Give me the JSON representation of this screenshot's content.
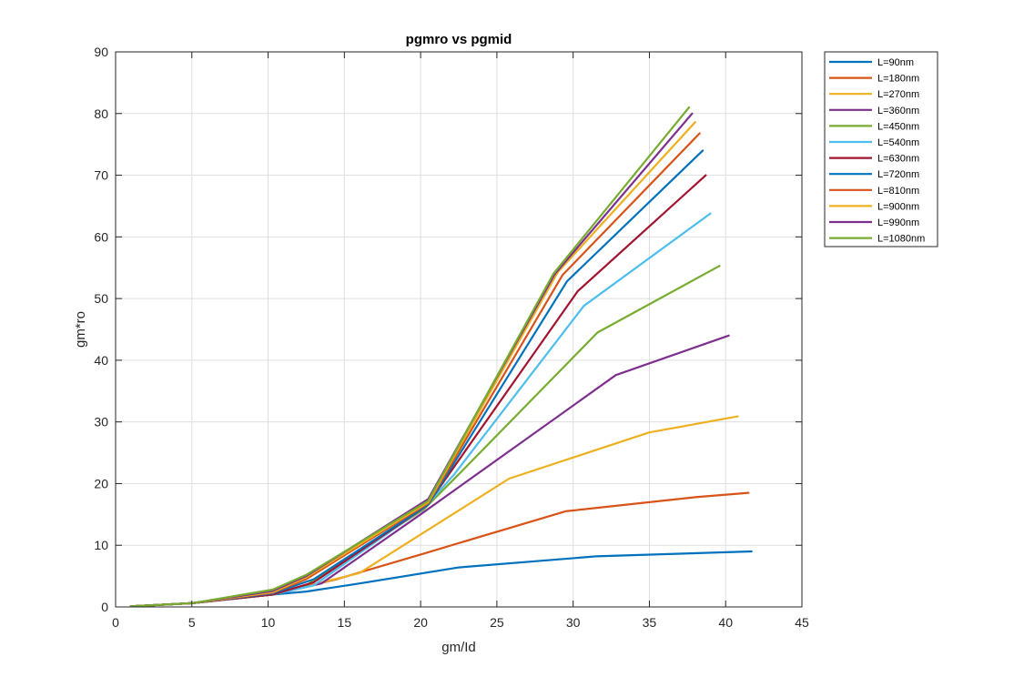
{
  "chart_data": {
    "type": "line",
    "title": "pgmro vs pgmid",
    "xlabel": "gm/Id",
    "ylabel": "gm*ro",
    "xlim": [
      0,
      45
    ],
    "ylim": [
      0,
      90
    ],
    "xticks": [
      0,
      5,
      10,
      15,
      20,
      25,
      30,
      35,
      40,
      45
    ],
    "yticks": [
      0,
      10,
      20,
      30,
      40,
      50,
      60,
      70,
      80,
      90
    ],
    "grid": true,
    "legend_position": "outside-top-right",
    "series": [
      {
        "name": "L=90nm",
        "color": "#0072BD",
        "points": [
          [
            1,
            0.1
          ],
          [
            5,
            0.6
          ],
          [
            10.3,
            2
          ],
          [
            12.5,
            2.5
          ],
          [
            16,
            3.8
          ],
          [
            22.5,
            6.4
          ],
          [
            31.5,
            8.2
          ],
          [
            41.7,
            9
          ]
        ]
      },
      {
        "name": "L=180nm",
        "color": "#D95319",
        "points": [
          [
            1,
            0.1
          ],
          [
            5,
            0.6
          ],
          [
            10.3,
            2
          ],
          [
            14.5,
            4.5
          ],
          [
            20,
            8.5
          ],
          [
            29.5,
            15.5
          ],
          [
            38,
            17.8
          ],
          [
            41.5,
            18.5
          ]
        ]
      },
      {
        "name": "L=270nm",
        "color": "#EDB120",
        "points": [
          [
            1,
            0.1
          ],
          [
            5,
            0.6
          ],
          [
            10.3,
            2
          ],
          [
            16,
            5.5
          ],
          [
            25.8,
            20.8
          ],
          [
            35,
            28.3
          ],
          [
            40.8,
            30.9
          ]
        ]
      },
      {
        "name": "L=360nm",
        "color": "#7E2F8E",
        "points": [
          [
            1,
            0.1
          ],
          [
            5,
            0.6
          ],
          [
            10.3,
            2
          ],
          [
            13.5,
            3.8
          ],
          [
            20,
            15
          ],
          [
            32.8,
            37.6
          ],
          [
            40.2,
            44
          ]
        ]
      },
      {
        "name": "L=450nm",
        "color": "#77AC30",
        "points": [
          [
            1,
            0.1
          ],
          [
            5,
            0.6
          ],
          [
            10.3,
            2
          ],
          [
            12.5,
            3.5
          ],
          [
            20.2,
            15.8
          ],
          [
            22.5,
            21.5
          ],
          [
            31.6,
            44.5
          ],
          [
            39.6,
            55.3
          ]
        ]
      },
      {
        "name": "L=540nm",
        "color": "#4DBEEE",
        "points": [
          [
            1,
            0.1
          ],
          [
            5,
            0.6
          ],
          [
            10.3,
            2
          ],
          [
            13,
            3.5
          ],
          [
            20.3,
            16.2
          ],
          [
            22.2,
            21.5
          ],
          [
            30.7,
            48.8
          ],
          [
            39,
            63.8
          ]
        ]
      },
      {
        "name": "L=630nm",
        "color": "#A2142F",
        "points": [
          [
            1,
            0.1
          ],
          [
            5,
            0.6
          ],
          [
            10.3,
            2
          ],
          [
            13,
            4
          ],
          [
            20.4,
            16.4
          ],
          [
            30.3,
            51.2
          ],
          [
            38.7,
            70
          ]
        ]
      },
      {
        "name": "L=720nm",
        "color": "#0072BD",
        "points": [
          [
            1,
            0.1
          ],
          [
            5,
            0.6
          ],
          [
            10.3,
            2.2
          ],
          [
            13,
            4.5
          ],
          [
            20.5,
            16.6
          ],
          [
            29.6,
            52.8
          ],
          [
            38.5,
            74
          ]
        ]
      },
      {
        "name": "L=810nm",
        "color": "#D95319",
        "points": [
          [
            1,
            0.1
          ],
          [
            5,
            0.6
          ],
          [
            10.3,
            2.3
          ],
          [
            12.5,
            4.5
          ],
          [
            20.5,
            16.8
          ],
          [
            29.3,
            53.8
          ],
          [
            38.3,
            76.8
          ]
        ]
      },
      {
        "name": "L=900nm",
        "color": "#EDB120",
        "points": [
          [
            1,
            0.1
          ],
          [
            5,
            0.6
          ],
          [
            10.3,
            2.4
          ],
          [
            12.5,
            4.8
          ],
          [
            20.5,
            17
          ],
          [
            29,
            54.3
          ],
          [
            38,
            78.6
          ]
        ]
      },
      {
        "name": "L=990nm",
        "color": "#7E2F8E",
        "points": [
          [
            1,
            0.1
          ],
          [
            5,
            0.6
          ],
          [
            10.3,
            2.6
          ],
          [
            12.5,
            5
          ],
          [
            20.5,
            17.5
          ],
          [
            28.8,
            54
          ],
          [
            37.8,
            80
          ]
        ]
      },
      {
        "name": "L=1080nm",
        "color": "#77AC30",
        "points": [
          [
            1,
            0.1
          ],
          [
            5,
            0.6
          ],
          [
            10.3,
            2.8
          ],
          [
            12.5,
            5.2
          ],
          [
            20.5,
            17.2
          ],
          [
            28.7,
            54
          ],
          [
            37.6,
            81
          ]
        ]
      }
    ]
  }
}
